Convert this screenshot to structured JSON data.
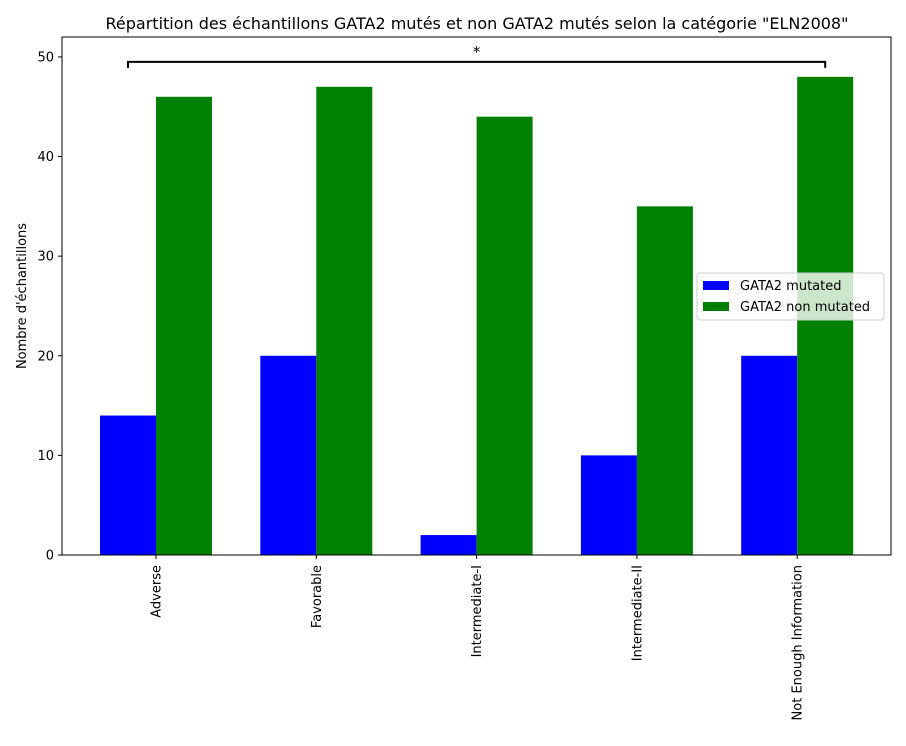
{
  "chart_data": {
    "type": "bar",
    "title": "Répartition des échantillons GATA2 mutés et non GATA2 mutés selon la catégorie \"ELN2008\"",
    "xlabel": "",
    "ylabel": "Nombre d'échantillons",
    "categories": [
      "Adverse",
      "Favorable",
      "Intermediate-I",
      "Intermediate-II",
      "Not Enough Information"
    ],
    "series": [
      {
        "name": "GATA2 mutated",
        "color": "#0000ff",
        "values": [
          14,
          20,
          2,
          10,
          20
        ]
      },
      {
        "name": "GATA2 non mutated",
        "color": "#008000",
        "values": [
          46,
          47,
          44,
          35,
          48
        ]
      }
    ],
    "ylim": [
      0,
      52
    ],
    "yticks": [
      0,
      10,
      20,
      30,
      40,
      50
    ],
    "grid": false,
    "legend_position": "center-right",
    "annotation": {
      "text": "*",
      "from_category": "Adverse",
      "to_category": "Not Enough Information",
      "y": 49.5
    }
  }
}
